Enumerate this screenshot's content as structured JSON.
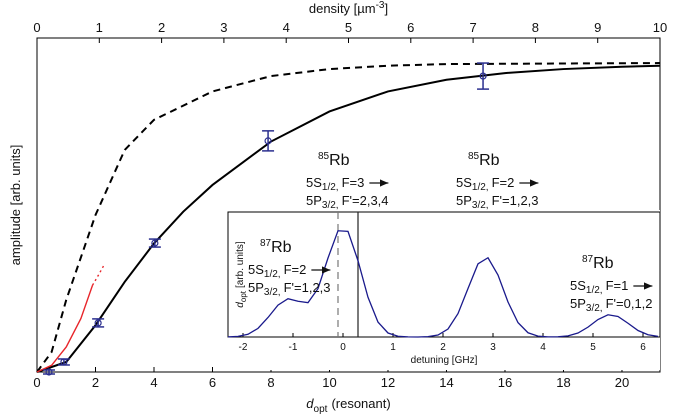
{
  "chart_data": {
    "type": "line",
    "xlabel": {
      "symbol": "d",
      "sub": "opt",
      "text": "(resonant)"
    },
    "x2label": {
      "text": "density [µm",
      "sup": "-3",
      "end": "]"
    },
    "ylabel": "amplitude [arb. units]",
    "xlim": [
      0,
      21.3
    ],
    "xticks": [
      0,
      2,
      4,
      6,
      8,
      10,
      12,
      14,
      16,
      18,
      20
    ],
    "x2lim": [
      0,
      10
    ],
    "x2ticks": [
      0,
      1,
      2,
      3,
      4,
      5,
      6,
      7,
      8,
      9,
      10
    ],
    "ylim": [
      0,
      1
    ],
    "series": [
      {
        "style": "dashed",
        "color": "#000000",
        "x": [
          0,
          0.5,
          1,
          2,
          3,
          4,
          6,
          8,
          10,
          12,
          14,
          21.3
        ],
        "values": [
          0,
          0.06,
          0.216,
          0.47,
          0.665,
          0.755,
          0.84,
          0.886,
          0.907,
          0.917,
          0.922,
          0.925
        ]
      },
      {
        "style": "solid",
        "color": "#000000",
        "x": [
          0,
          1,
          2,
          3,
          4,
          5,
          6,
          8,
          10,
          12,
          14,
          16,
          18,
          20,
          21.3
        ],
        "values": [
          0,
          0.03,
          0.14,
          0.27,
          0.385,
          0.48,
          0.56,
          0.69,
          0.78,
          0.84,
          0.875,
          0.895,
          0.907,
          0.914,
          0.917
        ]
      },
      {
        "style": "solid",
        "color": "#e8262b",
        "x": [
          0,
          0.5,
          1,
          1.5,
          1.9
        ],
        "values": [
          0,
          0.02,
          0.075,
          0.16,
          0.26
        ]
      },
      {
        "style": "dotted",
        "color": "#e8262b",
        "x": [
          1.9,
          2.1,
          2.29
        ],
        "values": [
          0.26,
          0.29,
          0.32
        ]
      },
      {
        "style": "markers",
        "color": "#2b2f8f",
        "x": [
          0.41,
          0.92,
          2.09,
          4.03,
          7.9,
          15.25
        ],
        "values": [
          0,
          0.03,
          0.147,
          0.386,
          0.692,
          0.886
        ],
        "errors": [
          0.006,
          0.009,
          0.012,
          0.012,
          0.03,
          0.039
        ]
      }
    ],
    "annotations": [
      {
        "isotope": "85",
        "element": "Rb",
        "lower": {
          "level": "5S",
          "sub": "1/2,",
          "f": "F=3"
        },
        "upper": {
          "level": "5P",
          "sub": "3/2,",
          "f": "F'=2,3,4"
        }
      },
      {
        "isotope": "85",
        "element": "Rb",
        "lower": {
          "level": "5S",
          "sub": "1/2,",
          "f": "F=2"
        },
        "upper": {
          "level": "5P",
          "sub": "3/2,",
          "f": "F'=1,2,3"
        }
      }
    ],
    "inset": {
      "type": "line",
      "xlabel": "detuning [GHz]",
      "ylabel": {
        "symbol": "d",
        "sub": "opt",
        "text": "[arb. units]"
      },
      "xlim": [
        -2.3,
        6.34
      ],
      "xticks": [
        -2,
        -1,
        0,
        1,
        2,
        3,
        4,
        5,
        6
      ],
      "ylim": [
        0,
        1
      ],
      "color": "#1a1a8c",
      "x": [
        -2.3,
        -2.1,
        -1.9,
        -1.7,
        -1.5,
        -1.3,
        -1.1,
        -0.9,
        -0.7,
        -0.5,
        -0.3,
        -0.1,
        0.1,
        0.3,
        0.5,
        0.7,
        0.9,
        1.1,
        1.3,
        1.5,
        1.7,
        1.9,
        2.1,
        2.3,
        2.5,
        2.7,
        2.9,
        3.1,
        3.3,
        3.5,
        3.7,
        3.9,
        4.1,
        4.3,
        4.5,
        4.7,
        4.9,
        5.1,
        5.3,
        5.5,
        5.7,
        5.9,
        6.1,
        6.3
      ],
      "values": [
        0.001,
        0.005,
        0.022,
        0.069,
        0.156,
        0.255,
        0.306,
        0.286,
        0.275,
        0.387,
        0.632,
        0.85,
        0.845,
        0.61,
        0.318,
        0.119,
        0.032,
        0.006,
        0.001,
        0,
        0.003,
        0.016,
        0.064,
        0.187,
        0.388,
        0.585,
        0.634,
        0.496,
        0.28,
        0.115,
        0.034,
        0.007,
        0.001,
        0.002,
        0.009,
        0.032,
        0.079,
        0.14,
        0.178,
        0.164,
        0.11,
        0.052,
        0.018,
        0.005
      ],
      "markers": [
        {
          "x": -0.1,
          "style": "dashed"
        },
        {
          "x": 0.3,
          "style": "solid"
        }
      ],
      "annotations": [
        {
          "isotope": "87",
          "element": "Rb",
          "lower": {
            "level": "5S",
            "sub": "1/2,",
            "f": "F=2"
          },
          "upper": {
            "level": "5P",
            "sub": "3/2,",
            "f": "F'=1,2,3"
          }
        },
        {
          "isotope": "87",
          "element": "Rb",
          "lower": {
            "level": "5S",
            "sub": "1/2,",
            "f": "F=1"
          },
          "upper": {
            "level": "5P",
            "sub": "3/2,",
            "f": "F'=0,1,2"
          }
        }
      ]
    }
  }
}
